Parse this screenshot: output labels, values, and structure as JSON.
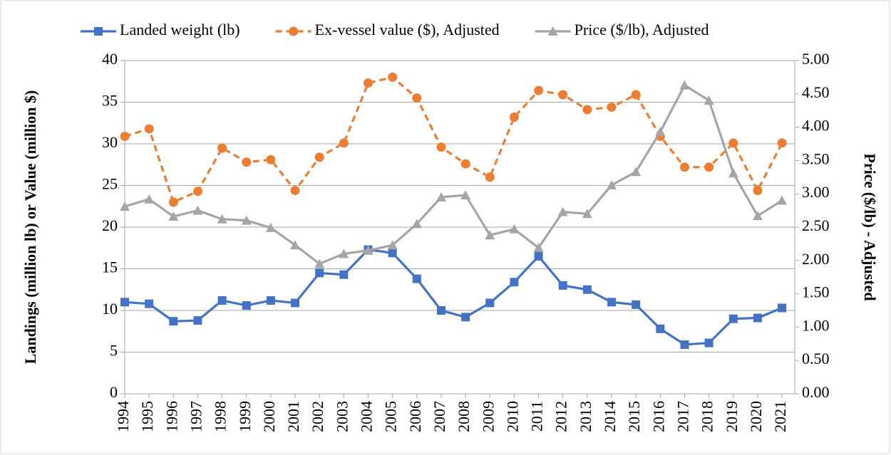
{
  "chart_data": {
    "type": "line",
    "categories": [
      "1994",
      "1995",
      "1996",
      "1997",
      "1998",
      "1999",
      "2000",
      "2001",
      "2002",
      "2003",
      "2004",
      "2005",
      "2006",
      "2007",
      "2008",
      "2009",
      "2010",
      "2011",
      "2012",
      "2013",
      "2014",
      "2015",
      "2016",
      "2017",
      "2018",
      "2019",
      "2020",
      "2021"
    ],
    "y_label": "Landings (million lb) or Value (million $)",
    "y2_label": "Price ($/lb) - Adjusted",
    "ylim": [
      0,
      40
    ],
    "yticks": [
      0,
      5,
      10,
      15,
      20,
      25,
      30,
      35,
      40
    ],
    "y2lim": [
      0,
      5
    ],
    "y2ticks": [
      {
        "value": 0,
        "label": "0.00"
      },
      {
        "value": 0.5,
        "label": "0.50"
      },
      {
        "value": 1,
        "label": "1.00"
      },
      {
        "value": 1.5,
        "label": "1.50"
      },
      {
        "value": 2,
        "label": "2.00"
      },
      {
        "value": 2.5,
        "label": "2.50"
      },
      {
        "value": 3,
        "label": "3.00"
      },
      {
        "value": 3.5,
        "label": "3.50"
      },
      {
        "value": 4,
        "label": "4.00"
      },
      {
        "value": 4.5,
        "label": "4.50"
      },
      {
        "value": 5,
        "label": "5.00"
      }
    ],
    "grid": true,
    "legend": "top",
    "series": [
      {
        "name": "Landed weight (lb)",
        "color": "#4472c4",
        "marker": "square",
        "dash": false,
        "values": [
          11.0,
          10.8,
          8.7,
          8.8,
          11.2,
          10.6,
          11.2,
          10.9,
          14.5,
          14.3,
          17.3,
          16.9,
          13.8,
          10.0,
          9.2,
          10.9,
          13.4,
          16.5,
          13.0,
          12.5,
          11.0,
          10.7,
          7.8,
          5.9,
          6.1,
          9.0,
          9.1,
          10.3
        ]
      },
      {
        "name": "Ex-vessel value ($), Adjusted",
        "color": "#ed7d31",
        "marker": "circle",
        "dash": true,
        "values": [
          30.9,
          31.8,
          23.0,
          24.3,
          29.5,
          27.8,
          28.1,
          24.4,
          28.4,
          30.1,
          37.3,
          38.0,
          35.5,
          29.6,
          27.6,
          26.0,
          33.2,
          36.4,
          35.9,
          34.1,
          34.4,
          35.9,
          30.9,
          27.2,
          27.2,
          30.1,
          24.4,
          30.1
        ]
      },
      {
        "name": "Price ($/lb), Adjusted",
        "color": "#a5a5a5",
        "marker": "triangle",
        "dash": false,
        "axis": "y2",
        "values": [
          2.81,
          2.92,
          2.66,
          2.75,
          2.62,
          2.6,
          2.49,
          2.23,
          1.95,
          2.1,
          2.15,
          2.23,
          2.55,
          2.95,
          2.98,
          2.38,
          2.47,
          2.19,
          2.73,
          2.7,
          3.13,
          3.33,
          3.93,
          4.63,
          4.4,
          3.31,
          2.67,
          2.9
        ]
      }
    ]
  }
}
